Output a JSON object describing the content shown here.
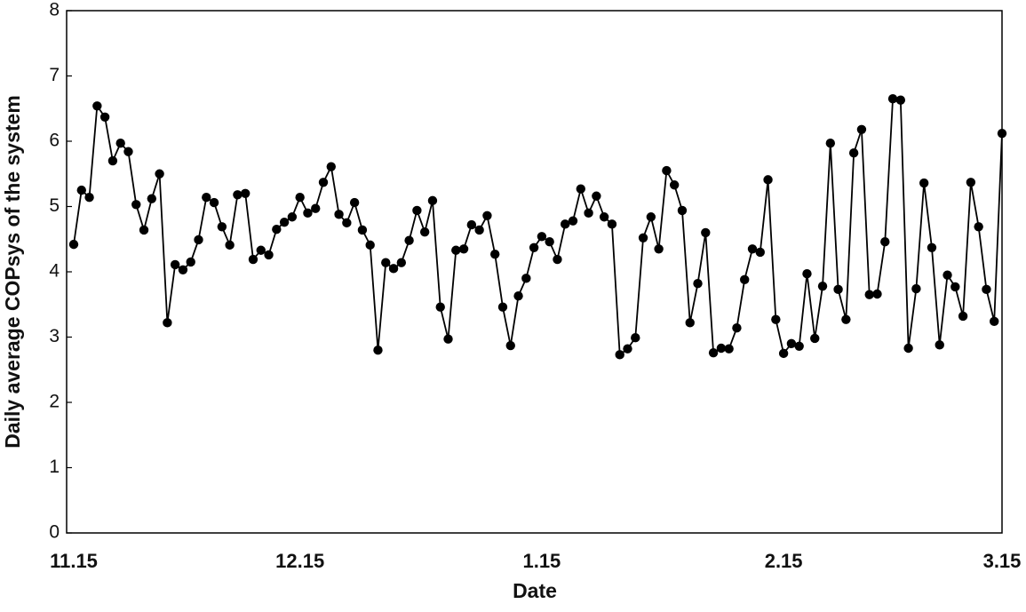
{
  "chart_data": {
    "type": "line",
    "x_label": "Date",
    "y_label": "Daily average COPsys of the system",
    "color": "#000000",
    "categories": [
      "11.15",
      null,
      null,
      null,
      null,
      null,
      null,
      null,
      null,
      null,
      null,
      null,
      null,
      null,
      null,
      null,
      null,
      null,
      null,
      null,
      null,
      null,
      null,
      null,
      null,
      null,
      null,
      null,
      null,
      "12.15",
      null,
      null,
      null,
      null,
      null,
      null,
      null,
      null,
      null,
      null,
      null,
      null,
      null,
      null,
      null,
      null,
      null,
      null,
      null,
      null,
      null,
      null,
      null,
      null,
      null,
      null,
      null,
      null,
      null,
      null,
      "1.15",
      null,
      null,
      null,
      null,
      null,
      null,
      null,
      null,
      null,
      null,
      null,
      null,
      null,
      null,
      null,
      null,
      null,
      null,
      null,
      null,
      null,
      null,
      null,
      null,
      null,
      null,
      null,
      null,
      null,
      null,
      "2.15",
      null,
      null,
      null,
      null,
      null,
      null,
      null,
      null,
      null,
      null,
      null,
      null,
      null,
      null,
      null,
      null,
      null,
      null,
      null,
      null,
      null,
      null,
      null,
      null,
      null,
      null,
      null,
      "3.15"
    ],
    "values": [
      4.42,
      5.25,
      5.14,
      6.54,
      6.37,
      5.7,
      5.97,
      5.84,
      5.03,
      4.64,
      5.12,
      5.5,
      3.22,
      4.11,
      4.03,
      4.15,
      4.49,
      5.14,
      5.06,
      4.69,
      4.41,
      5.18,
      5.2,
      4.19,
      4.33,
      4.26,
      4.65,
      4.76,
      4.84,
      5.14,
      4.9,
      4.97,
      5.37,
      5.61,
      4.88,
      4.75,
      5.06,
      4.64,
      4.41,
      2.8,
      4.14,
      4.05,
      4.14,
      4.48,
      4.94,
      4.61,
      5.09,
      3.46,
      2.97,
      4.33,
      4.35,
      4.72,
      4.64,
      4.86,
      4.27,
      3.46,
      2.87,
      3.63,
      3.9,
      4.37,
      4.54,
      4.46,
      4.19,
      4.73,
      4.78,
      5.27,
      4.9,
      5.16,
      4.84,
      4.73,
      2.73,
      2.82,
      2.99,
      4.52,
      4.84,
      4.35,
      5.55,
      5.33,
      4.94,
      3.22,
      3.82,
      4.6,
      2.76,
      2.83,
      2.82,
      3.14,
      3.88,
      4.35,
      4.3,
      5.41,
      3.27,
      2.75,
      2.9,
      2.86,
      3.97,
      2.98,
      3.78,
      5.97,
      3.73,
      3.27,
      5.82,
      6.18,
      3.65,
      3.66,
      4.46,
      6.65,
      6.63,
      2.83,
      3.74,
      5.36,
      4.37,
      2.88,
      3.95,
      3.77,
      3.32,
      5.37,
      4.69,
      3.73,
      3.24,
      6.12
    ],
    "ylim": [
      0,
      8
    ],
    "yticks": [
      0,
      1,
      2,
      3,
      4,
      5,
      6,
      7,
      8
    ]
  }
}
